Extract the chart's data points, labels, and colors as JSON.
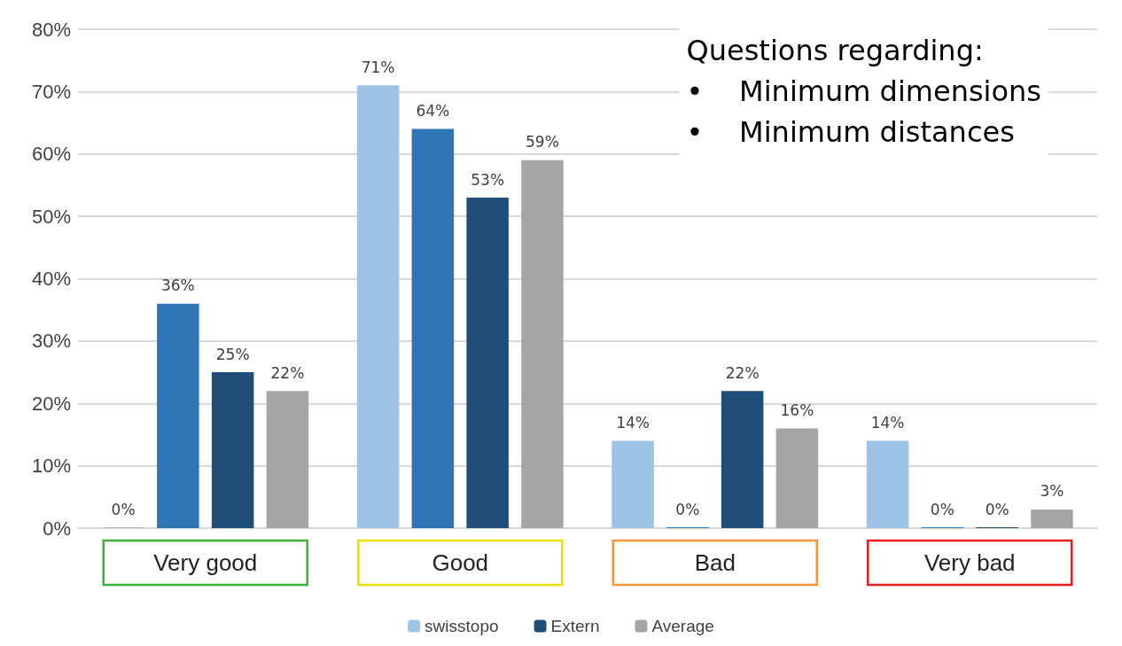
{
  "chart_data": {
    "type": "bar",
    "categories": [
      "Very good",
      "Good",
      "Bad",
      "Very bad"
    ],
    "series": [
      {
        "name": "swisstopo",
        "color": "#9dc3e6",
        "values": [
          0,
          71,
          14,
          14
        ],
        "value_labels": [
          "0%",
          "71%",
          "14%",
          "14%"
        ]
      },
      {
        "color": "#2e75b6",
        "values": [
          36,
          64,
          0,
          0
        ],
        "value_labels": [
          "36%",
          "64%",
          "0%",
          "0%"
        ]
      },
      {
        "name": "Extern",
        "color": "#1f4e79",
        "values": [
          25,
          53,
          22,
          0
        ],
        "value_labels": [
          "25%",
          "53%",
          "22%",
          "0%"
        ]
      },
      {
        "name": "Average",
        "color": "#a5a5a5",
        "values": [
          22,
          59,
          16,
          3
        ],
        "value_labels": [
          "22%",
          "59%",
          "16%",
          "3%"
        ]
      }
    ],
    "ylim": [
      0,
      80
    ],
    "yticks": [
      {
        "value": 0,
        "label": "0%"
      },
      {
        "value": 10,
        "label": "10%"
      },
      {
        "value": 20,
        "label": "20%"
      },
      {
        "value": 30,
        "label": "30%"
      },
      {
        "value": 40,
        "label": "40%"
      },
      {
        "value": 50,
        "label": "50%"
      },
      {
        "value": 60,
        "label": "60%"
      },
      {
        "value": 70,
        "label": "70%"
      },
      {
        "value": 80,
        "label": "80%"
      }
    ],
    "grid": "y",
    "legend": "bottom",
    "annotations": [
      "Questions regarding:\n•    Minimum dimensions\n•    Minimum distances"
    ]
  }
}
